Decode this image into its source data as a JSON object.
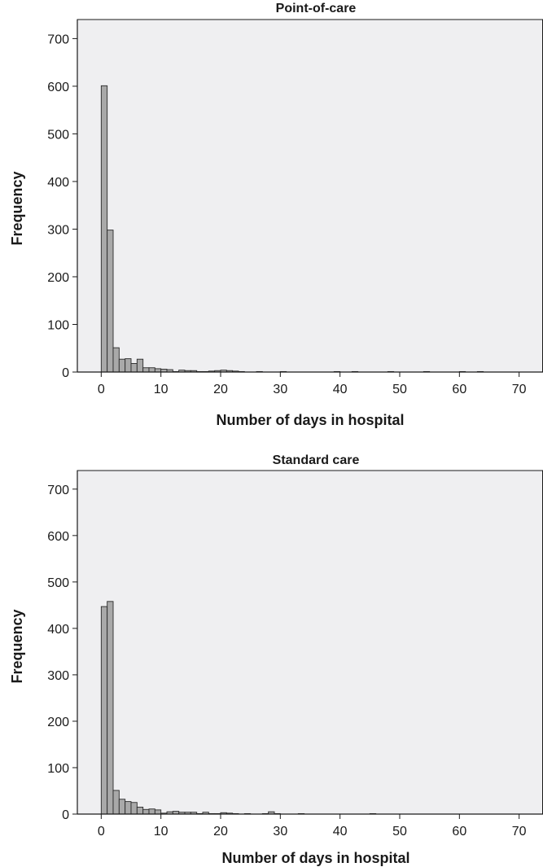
{
  "chart_data": [
    {
      "type": "bar",
      "title": "Point-of-care",
      "xlabel": "Number of days in hospital",
      "ylabel": "Frequency",
      "xlim": [
        -4,
        74
      ],
      "ylim": [
        0,
        740
      ],
      "xticks": [
        0,
        10,
        20,
        30,
        40,
        50,
        60,
        70
      ],
      "yticks": [
        0,
        100,
        200,
        300,
        400,
        500,
        600,
        700
      ],
      "bin_width": 1,
      "grid": false,
      "bins": [
        {
          "x": 0,
          "y": 601
        },
        {
          "x": 1,
          "y": 298
        },
        {
          "x": 2,
          "y": 51
        },
        {
          "x": 3,
          "y": 27
        },
        {
          "x": 4,
          "y": 28
        },
        {
          "x": 5,
          "y": 18
        },
        {
          "x": 6,
          "y": 27
        },
        {
          "x": 7,
          "y": 9
        },
        {
          "x": 8,
          "y": 9
        },
        {
          "x": 9,
          "y": 7
        },
        {
          "x": 10,
          "y": 6
        },
        {
          "x": 11,
          "y": 5
        },
        {
          "x": 12,
          "y": 1
        },
        {
          "x": 13,
          "y": 4
        },
        {
          "x": 14,
          "y": 3
        },
        {
          "x": 15,
          "y": 3
        },
        {
          "x": 16,
          "y": 1
        },
        {
          "x": 17,
          "y": 1
        },
        {
          "x": 18,
          "y": 2
        },
        {
          "x": 19,
          "y": 3
        },
        {
          "x": 20,
          "y": 4
        },
        {
          "x": 21,
          "y": 3
        },
        {
          "x": 22,
          "y": 2
        },
        {
          "x": 23,
          "y": 1
        },
        {
          "x": 26,
          "y": 1
        },
        {
          "x": 30,
          "y": 1
        },
        {
          "x": 39,
          "y": 1
        },
        {
          "x": 42,
          "y": 1
        },
        {
          "x": 48,
          "y": 1
        },
        {
          "x": 54,
          "y": 1
        },
        {
          "x": 60,
          "y": 1
        },
        {
          "x": 63,
          "y": 1
        }
      ]
    },
    {
      "type": "bar",
      "title": "Standard care",
      "xlabel": "Number of days in hospital",
      "ylabel": "Frequency",
      "xlim": [
        -4,
        74
      ],
      "ylim": [
        0,
        740
      ],
      "xticks": [
        0,
        10,
        20,
        30,
        40,
        50,
        60,
        70
      ],
      "yticks": [
        0,
        100,
        200,
        300,
        400,
        500,
        600,
        700
      ],
      "bin_width": 1,
      "grid": false,
      "bins": [
        {
          "x": 0,
          "y": 447
        },
        {
          "x": 1,
          "y": 458
        },
        {
          "x": 2,
          "y": 51
        },
        {
          "x": 3,
          "y": 32
        },
        {
          "x": 4,
          "y": 27
        },
        {
          "x": 5,
          "y": 25
        },
        {
          "x": 6,
          "y": 15
        },
        {
          "x": 7,
          "y": 10
        },
        {
          "x": 8,
          "y": 11
        },
        {
          "x": 9,
          "y": 9
        },
        {
          "x": 10,
          "y": 2
        },
        {
          "x": 11,
          "y": 5
        },
        {
          "x": 12,
          "y": 6
        },
        {
          "x": 13,
          "y": 4
        },
        {
          "x": 14,
          "y": 4
        },
        {
          "x": 15,
          "y": 4
        },
        {
          "x": 16,
          "y": 1
        },
        {
          "x": 17,
          "y": 4
        },
        {
          "x": 18,
          "y": 1
        },
        {
          "x": 19,
          "y": 1
        },
        {
          "x": 20,
          "y": 3
        },
        {
          "x": 21,
          "y": 2
        },
        {
          "x": 22,
          "y": 1
        },
        {
          "x": 24,
          "y": 1
        },
        {
          "x": 27,
          "y": 1
        },
        {
          "x": 28,
          "y": 5
        },
        {
          "x": 29,
          "y": 1
        },
        {
          "x": 33,
          "y": 1
        },
        {
          "x": 45,
          "y": 1
        }
      ]
    }
  ]
}
